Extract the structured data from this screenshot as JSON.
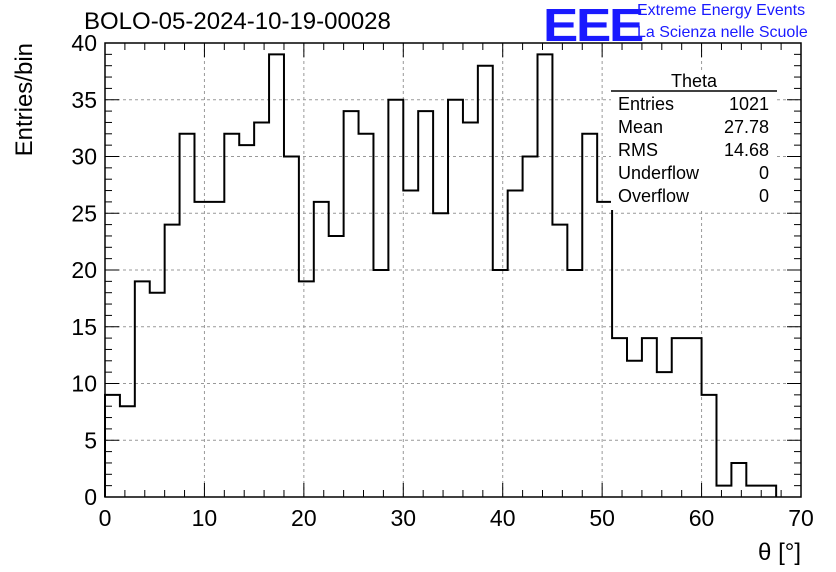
{
  "header": {
    "title": "BOLO-05-2024-10-19-00028",
    "logo_text": "EEE",
    "logo_line1": "Extreme Energy Events",
    "logo_line2": "La Scienza nelle Scuole",
    "logo_color": "#1a1aff"
  },
  "chart_data": {
    "type": "histogram",
    "title": "BOLO-05-2024-10-19-00028",
    "xlabel": "θ [°]",
    "ylabel": "Entries/bin",
    "xlim": [
      0,
      70
    ],
    "ylim": [
      0,
      40
    ],
    "xticks": [
      0,
      10,
      20,
      30,
      40,
      50,
      60,
      70
    ],
    "yticks": [
      0,
      5,
      10,
      15,
      20,
      25,
      30,
      35,
      40
    ],
    "grid": true,
    "bin_width": 1.5,
    "bin_edges_start": 0,
    "values": [
      9,
      8,
      19,
      18,
      24,
      32,
      26,
      26,
      32,
      31,
      33,
      39,
      30,
      19,
      26,
      23,
      34,
      32,
      20,
      35,
      27,
      34,
      25,
      35,
      33,
      38,
      20,
      27,
      30,
      39,
      24,
      20,
      32,
      26,
      14,
      12,
      14,
      11,
      14,
      14,
      9,
      1,
      3,
      1,
      1
    ],
    "stats_box": {
      "title": "Theta",
      "rows": [
        {
          "label": "Entries",
          "value": "1021"
        },
        {
          "label": "Mean",
          "value": "27.78"
        },
        {
          "label": "RMS",
          "value": "14.68"
        },
        {
          "label": "Underflow",
          "value": "0"
        },
        {
          "label": "Overflow",
          "value": "0"
        }
      ]
    }
  }
}
